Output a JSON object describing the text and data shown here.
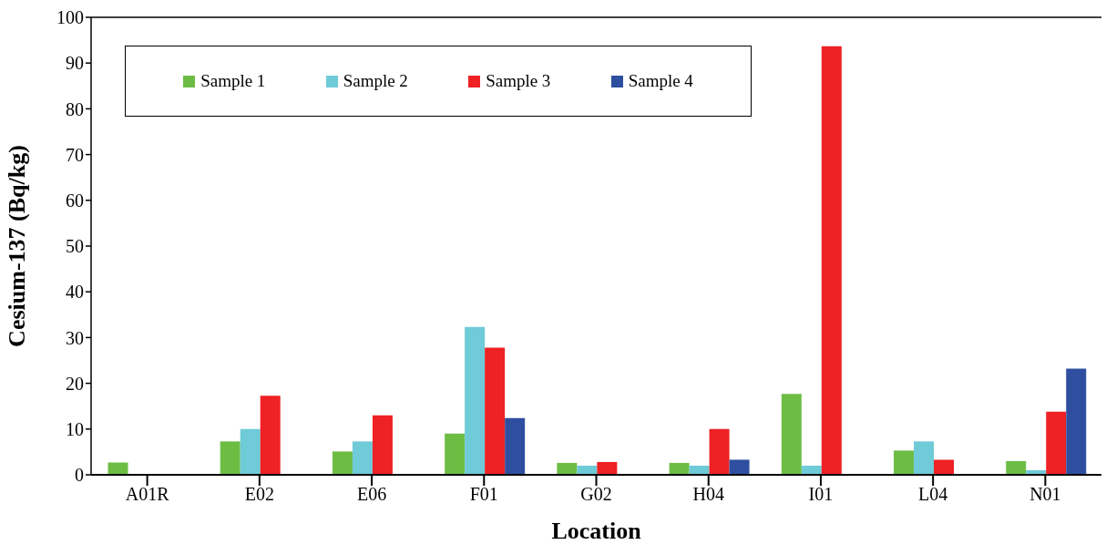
{
  "chart_data": {
    "type": "bar",
    "xlabel": "Location",
    "ylabel": "Cesium-137 (Bq/kg)",
    "categories": [
      "A01R",
      "E02",
      "E06",
      "F01",
      "G02",
      "H04",
      "I01",
      "L04",
      "N01"
    ],
    "series": [
      {
        "name": "Sample 1",
        "color": "#6dbd45",
        "values": [
          2.7,
          7.3,
          5.1,
          9,
          2.6,
          2.6,
          17.7,
          5.3,
          3
        ]
      },
      {
        "name": "Sample 2",
        "color": "#6ecbd7",
        "values": [
          null,
          10,
          7.3,
          32.3,
          2,
          2,
          2,
          7.3,
          1
        ]
      },
      {
        "name": "Sample 3",
        "color": "#ee2124",
        "values": [
          null,
          17.3,
          13,
          27.8,
          2.8,
          10,
          93.7,
          3.3,
          13.8
        ]
      },
      {
        "name": "Sample 4",
        "color": "#2e4f9f",
        "values": [
          null,
          null,
          null,
          12.4,
          null,
          3.3,
          null,
          null,
          23.2
        ]
      }
    ],
    "ylim": [
      0,
      100
    ],
    "yticks": [
      0,
      10,
      20,
      30,
      40,
      50,
      60,
      70,
      80,
      90,
      100
    ],
    "grid": false,
    "legend": "top left"
  }
}
